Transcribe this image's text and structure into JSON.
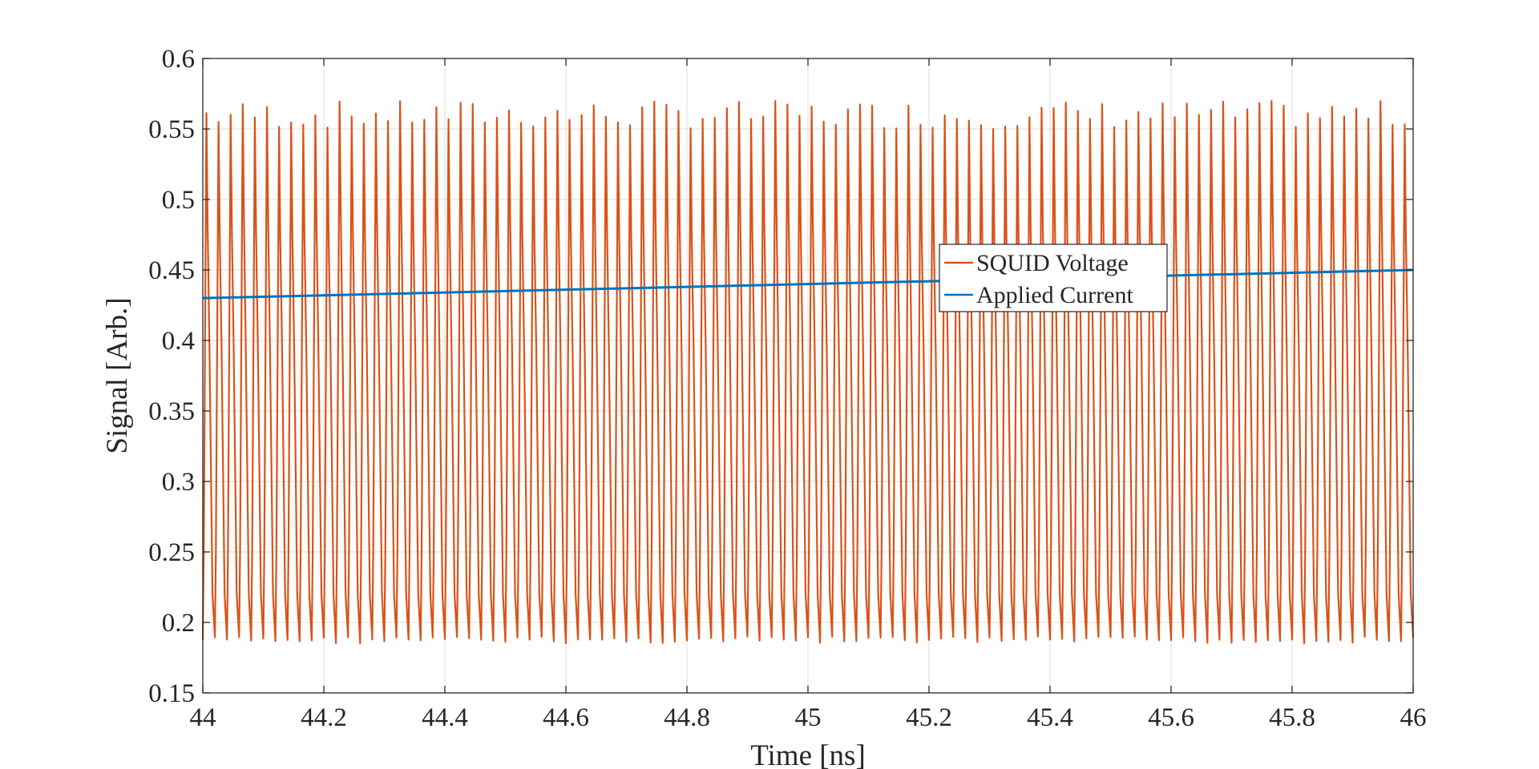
{
  "chart_data": {
    "type": "line",
    "title": "",
    "xlabel": "Time [ns]",
    "ylabel": "Signal [Arb.]",
    "xlim": [
      44,
      46
    ],
    "ylim": [
      0.15,
      0.6
    ],
    "xticks": [
      44,
      44.2,
      44.4,
      44.6,
      44.8,
      45,
      45.2,
      45.4,
      45.6,
      45.8,
      46
    ],
    "xtick_labels": [
      "44",
      "44.2",
      "44.4",
      "44.6",
      "44.8",
      "45",
      "45.2",
      "45.4",
      "45.6",
      "45.8",
      "46"
    ],
    "yticks": [
      0.15,
      0.2,
      0.25,
      0.3,
      0.35,
      0.4,
      0.45,
      0.5,
      0.55,
      0.6
    ],
    "ytick_labels": [
      "0.15",
      "0.2",
      "0.25",
      "0.3",
      "0.35",
      "0.4",
      "0.45",
      "0.5",
      "0.55",
      "0.6"
    ],
    "grid": true,
    "legend_position": "upper-right-center",
    "series": [
      {
        "name": "SQUID Voltage",
        "color": "#D95319",
        "kind": "oscillation",
        "cycles": 100,
        "min": 0.19,
        "max": 0.56,
        "peak_spike_max": 0.57,
        "trough_spike_min": 0.185
      },
      {
        "name": "Applied Current",
        "color": "#0072BD",
        "x": [
          44,
          46
        ],
        "y": [
          0.43,
          0.45
        ]
      }
    ]
  }
}
